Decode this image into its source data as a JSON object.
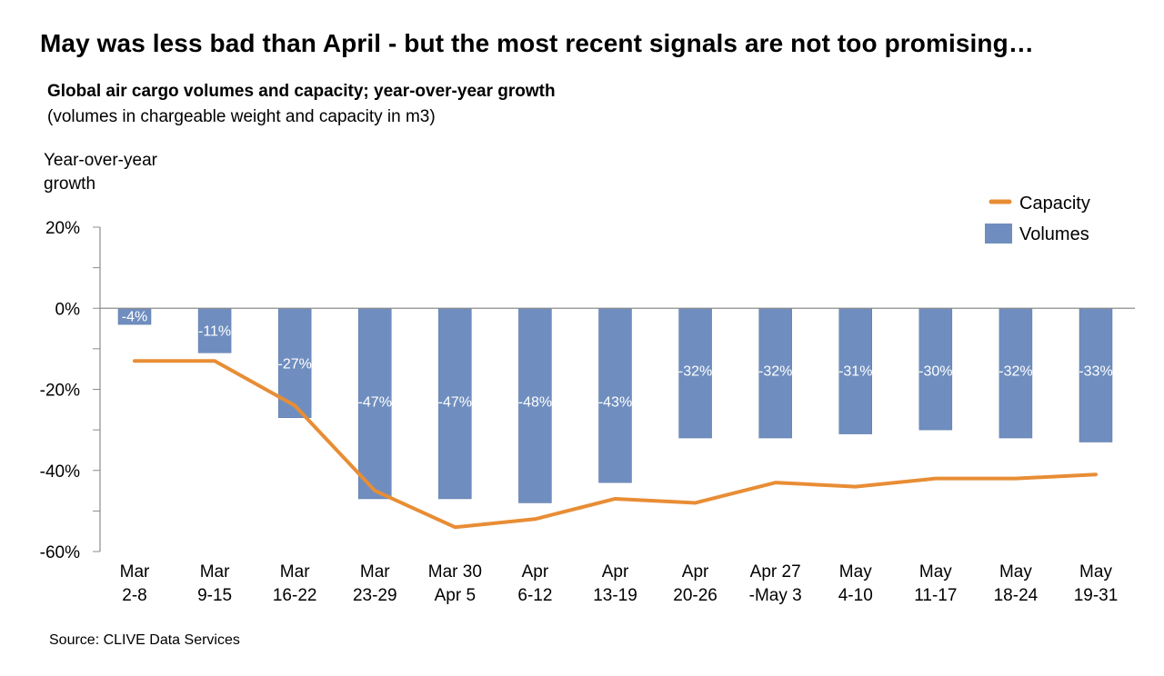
{
  "headline": "May was less bad than April - but the most recent signals are not too promising…",
  "source": "Source: CLIVE Data Services",
  "colors": {
    "volumes": "#6f8ebf",
    "capacity": "#e88d35",
    "axis": "#8c8c8c",
    "bar_label": "#ffffff"
  },
  "chart_data": {
    "type": "bar",
    "title": "Global air cargo volumes and capacity; year-over-year growth",
    "subtitle": "(volumes in chargeable weight and capacity in m3)",
    "ylabel": [
      "Year-over-year",
      "growth"
    ],
    "ylim": [
      -60,
      20
    ],
    "yticks": [
      {
        "value": 20,
        "label": "20%"
      },
      {
        "value": 0,
        "label": "0%"
      },
      {
        "value": -20,
        "label": "-20%"
      },
      {
        "value": -40,
        "label": "-40%"
      },
      {
        "value": -60,
        "label": "-60%"
      }
    ],
    "categories": [
      [
        "Mar",
        "2-8"
      ],
      [
        "Mar",
        "9-15"
      ],
      [
        "Mar",
        "16-22"
      ],
      [
        "Mar",
        "23-29"
      ],
      [
        "Mar 30",
        "Apr 5"
      ],
      [
        "Apr",
        "6-12"
      ],
      [
        "Apr",
        "13-19"
      ],
      [
        "Apr",
        "20-26"
      ],
      [
        "Apr 27",
        "-May 3"
      ],
      [
        "May",
        "4-10"
      ],
      [
        "May",
        "11-17"
      ],
      [
        "May",
        "18-24"
      ],
      [
        "May",
        "19-31"
      ]
    ],
    "legend_position": "top-right",
    "series": [
      {
        "name": "Volumes",
        "type": "bar",
        "values": [
          -4,
          -11,
          -27,
          -47,
          -47,
          -48,
          -43,
          -32,
          -32,
          -31,
          -30,
          -32,
          -33
        ],
        "labels": [
          "-4%",
          "-11%",
          "-27%",
          "-47%",
          "-47%",
          "-48%",
          "-43%",
          "-32%",
          "-32%",
          "-31%",
          "-30%",
          "-32%",
          "-33%"
        ]
      },
      {
        "name": "Capacity",
        "type": "line",
        "values": [
          -13,
          -13,
          -24,
          -45,
          -54,
          -52,
          -47,
          -48,
          -43,
          -44,
          -42,
          -42,
          -41
        ]
      }
    ]
  }
}
